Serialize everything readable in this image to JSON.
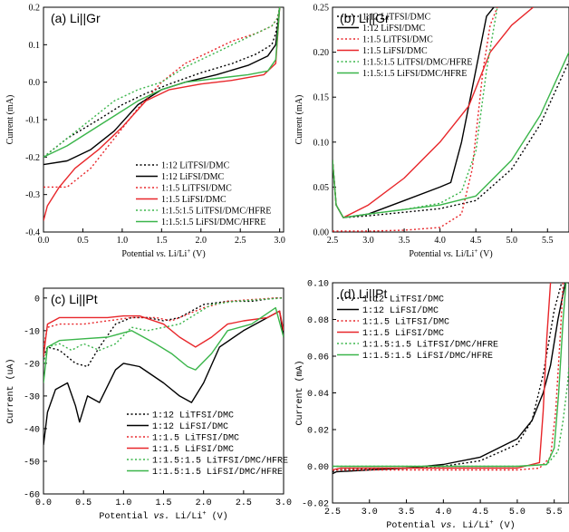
{
  "colors": {
    "black": "#000000",
    "red": "#e8262a",
    "green": "#3ab54a"
  },
  "legend_labels": [
    "1:12 LiTFSI/DMC",
    "1:12 LiFSI/DMC",
    "1:1.5 LiTFSI/DMC",
    "1:1.5 LiFSI/DMC",
    "1:1.5:1.5 LiTFSI/DMC/HFRE",
    "1:1.5:1.5 LiFSI/DMC/HFRE"
  ],
  "series_styles": [
    {
      "color": "black",
      "dash": true
    },
    {
      "color": "black",
      "dash": false
    },
    {
      "color": "red",
      "dash": true
    },
    {
      "color": "red",
      "dash": false
    },
    {
      "color": "green",
      "dash": true
    },
    {
      "color": "green",
      "dash": false
    }
  ],
  "chart_data": [
    {
      "id": "a",
      "type": "line",
      "panel_label": "(a) Li||Gr",
      "xlabel": "Potential vs. Li/Li+ (V)",
      "xlabel_parts": {
        "pre": "Potential ",
        "italic": "vs.",
        "mid": " Li/Li",
        "sup": "+",
        "post": " (V)"
      },
      "ylabel": "Current (mA)",
      "xlim": [
        0.0,
        3.05
      ],
      "ylim": [
        -0.4,
        0.2
      ],
      "xticks": [
        "0.0",
        "0.5",
        "1.0",
        "1.5",
        "2.0",
        "2.5",
        "3.0"
      ],
      "yticks": [
        "-0.4",
        "-0.3",
        "-0.2",
        "-0.1",
        "0.0",
        "0.1",
        "0.2"
      ],
      "legend_position": "bottom-right",
      "series": [
        {
          "name": "1:12 LiTFSI/DMC",
          "x": [
            0,
            0.3,
            0.7,
            1.0,
            1.3,
            1.6,
            2.0,
            2.4,
            2.7,
            2.9,
            2.95,
            3.0
          ],
          "y": [
            -0.2,
            -0.15,
            -0.1,
            -0.06,
            -0.03,
            -0.005,
            0.025,
            0.05,
            0.075,
            0.1,
            0.13,
            0.2
          ]
        },
        {
          "name": "1:12 LiFSI/DMC",
          "x": [
            0,
            0.3,
            0.6,
            0.9,
            1.2,
            1.5,
            1.8,
            2.2,
            2.6,
            2.85,
            2.95,
            3.0
          ],
          "y": [
            -0.22,
            -0.21,
            -0.18,
            -0.13,
            -0.06,
            -0.02,
            0.0,
            0.02,
            0.045,
            0.07,
            0.1,
            0.2
          ]
        },
        {
          "name": "1:1.5 LiTFSI/DMC",
          "x": [
            0,
            0.3,
            0.6,
            0.9,
            1.2,
            1.5,
            1.8,
            2.1,
            2.4,
            2.7,
            2.9,
            2.97,
            3.0
          ],
          "y": [
            -0.28,
            -0.28,
            -0.23,
            -0.15,
            -0.07,
            0.0,
            0.05,
            0.08,
            0.11,
            0.13,
            0.15,
            0.17,
            0.2
          ]
        },
        {
          "name": "1:1.5 LiFSI/DMC",
          "x": [
            0,
            0.05,
            0.2,
            0.4,
            0.7,
            1.0,
            1.3,
            1.6,
            2.0,
            2.4,
            2.8,
            2.95,
            3.0
          ],
          "y": [
            -0.37,
            -0.33,
            -0.28,
            -0.23,
            -0.18,
            -0.12,
            -0.05,
            -0.02,
            -0.005,
            0.005,
            0.02,
            0.05,
            0.2
          ]
        },
        {
          "name": "1:1.5:1.5 LiTFSI/DMC/HFRE",
          "x": [
            0,
            0.3,
            0.6,
            0.9,
            1.2,
            1.5,
            1.8,
            2.1,
            2.4,
            2.7,
            2.9,
            2.97,
            3.0
          ],
          "y": [
            -0.2,
            -0.15,
            -0.1,
            -0.05,
            -0.02,
            0.0,
            0.04,
            0.07,
            0.1,
            0.13,
            0.15,
            0.17,
            0.2
          ]
        },
        {
          "name": "1:1.5:1.5 LiFSI/DMC/HFRE",
          "x": [
            0,
            0.3,
            0.6,
            0.9,
            1.2,
            1.5,
            1.8,
            2.2,
            2.6,
            2.85,
            2.95,
            3.0
          ],
          "y": [
            -0.2,
            -0.17,
            -0.13,
            -0.09,
            -0.05,
            -0.02,
            0.0,
            0.01,
            0.02,
            0.03,
            0.06,
            0.2
          ]
        }
      ]
    },
    {
      "id": "b",
      "type": "line",
      "panel_label": "(b) Li||Gr",
      "xlabel": "Potential vs. Li/Li+ (V)",
      "xlabel_parts": {
        "pre": "Potential ",
        "italic": "vs.",
        "mid": " Li/Li",
        "sup": "+",
        "post": " (V)"
      },
      "ylabel": "Current (mA)",
      "xlim": [
        2.5,
        5.8
      ],
      "ylim": [
        0.0,
        0.25
      ],
      "xticks": [
        "2.5",
        "3.0",
        "3.5",
        "4.0",
        "4.5",
        "5.0",
        "5.5"
      ],
      "yticks": [
        "0.00",
        "0.05",
        "0.10",
        "0.15",
        "0.20",
        "0.25"
      ],
      "legend_position": "top-left",
      "series": [
        {
          "name": "1:12 LiTFSI/DMC",
          "x": [
            2.5,
            2.55,
            2.65,
            3.0,
            3.5,
            4.0,
            4.5,
            5.0,
            5.4,
            5.8
          ],
          "y": [
            0.08,
            0.03,
            0.016,
            0.018,
            0.022,
            0.026,
            0.035,
            0.07,
            0.12,
            0.19
          ]
        },
        {
          "name": "1:12 LiFSI/DMC",
          "x": [
            2.5,
            2.55,
            2.65,
            3.0,
            3.5,
            4.0,
            4.15,
            4.3,
            4.5,
            4.65,
            4.75
          ],
          "y": [
            0.08,
            0.03,
            0.016,
            0.02,
            0.035,
            0.05,
            0.055,
            0.1,
            0.18,
            0.24,
            0.25
          ]
        },
        {
          "name": "1:1.5 LiTFSI/DMC",
          "x": [
            2.5,
            2.6,
            3.0,
            3.5,
            4.0,
            4.3,
            4.45,
            4.6,
            4.7,
            4.8
          ],
          "y": [
            0.001,
            0.001,
            0.001,
            0.002,
            0.005,
            0.02,
            0.07,
            0.18,
            0.23,
            0.25
          ]
        },
        {
          "name": "1:1.5 LiFSI/DMC",
          "x": [
            2.5,
            2.55,
            2.65,
            3.0,
            3.5,
            4.0,
            4.4,
            4.7,
            5.0,
            5.3
          ],
          "y": [
            0.08,
            0.03,
            0.016,
            0.03,
            0.06,
            0.1,
            0.14,
            0.2,
            0.23,
            0.25
          ]
        },
        {
          "name": "1:1.5:1.5 LiTFSI/DMC/HFRE",
          "x": [
            2.5,
            2.55,
            2.65,
            3.0,
            3.5,
            4.0,
            4.3,
            4.5,
            4.65,
            4.8
          ],
          "y": [
            0.08,
            0.03,
            0.016,
            0.02,
            0.025,
            0.032,
            0.045,
            0.09,
            0.18,
            0.25
          ]
        },
        {
          "name": "1:1.5:1.5 LiFSI/DMC/HFRE",
          "x": [
            2.5,
            2.55,
            2.65,
            3.0,
            3.5,
            4.0,
            4.5,
            5.0,
            5.4,
            5.8
          ],
          "y": [
            0.08,
            0.03,
            0.016,
            0.02,
            0.025,
            0.03,
            0.04,
            0.08,
            0.13,
            0.2
          ]
        }
      ]
    },
    {
      "id": "c",
      "type": "line",
      "panel_label": "(c) Li||Pt",
      "xlabel": "Potential vs. Li/Li+ (V)",
      "xlabel_parts": {
        "pre": "Potential ",
        "italic": "vs.",
        "mid": " Li/Li",
        "sup": "+",
        "post": " (V)"
      },
      "ylabel": "Current (uA)",
      "xlim": [
        0.0,
        3.0
      ],
      "ylim": [
        -60,
        3
      ],
      "xticks": [
        "0.0",
        "0.5",
        "1.0",
        "1.5",
        "2.0",
        "2.5",
        "3.0"
      ],
      "yticks": [
        "-60",
        "-50",
        "-40",
        "-30",
        "-20",
        "-10",
        "0"
      ],
      "legend_position": "bottom-right",
      "series": [
        {
          "name": "1:12 LiTFSI/DMC",
          "x": [
            0.0,
            0.05,
            0.2,
            0.4,
            0.55,
            0.7,
            0.9,
            1.1,
            1.3,
            1.5,
            1.7,
            2.0,
            2.3,
            2.6,
            2.9,
            3.0
          ],
          "y": [
            -18,
            -15,
            -16,
            -20,
            -21,
            -15,
            -8,
            -6,
            -6,
            -7,
            -6,
            -2,
            -1,
            -1,
            0,
            0
          ]
        },
        {
          "name": "1:12 LiFSI/DMC",
          "x": [
            0.0,
            0.05,
            0.15,
            0.3,
            0.4,
            0.45,
            0.55,
            0.7,
            0.9,
            1.0,
            1.2,
            1.5,
            1.7,
            1.85,
            2.0,
            2.2,
            2.5,
            2.8,
            2.95,
            3.0
          ],
          "y": [
            -45,
            -35,
            -28,
            -26,
            -33,
            -38,
            -30,
            -32,
            -22,
            -20,
            -21,
            -26,
            -30,
            -32,
            -26,
            -15,
            -10,
            -6,
            -4,
            -12
          ]
        },
        {
          "name": "1:1.5 LiTFSI/DMC",
          "x": [
            0.0,
            0.05,
            0.2,
            0.5,
            0.8,
            1.1,
            1.4,
            1.6,
            1.8,
            2.0,
            2.3,
            2.6,
            2.9,
            3.0
          ],
          "y": [
            -15,
            -9,
            -8,
            -8,
            -7,
            -6,
            -6,
            -7,
            -5,
            -3,
            -1,
            -0.5,
            0,
            0
          ]
        },
        {
          "name": "1:1.5 LiFSI/DMC",
          "x": [
            0.0,
            0.05,
            0.2,
            0.5,
            0.8,
            1.0,
            1.2,
            1.5,
            1.7,
            1.9,
            2.1,
            2.3,
            2.5,
            2.8,
            2.95,
            3.0
          ],
          "y": [
            -18,
            -8,
            -6,
            -6,
            -6,
            -5.5,
            -5.5,
            -8,
            -12,
            -15,
            -12,
            -8,
            -7,
            -6,
            -4,
            -10
          ]
        },
        {
          "name": "1:1.5:1.5 LiTFSI/DMC/HFRE",
          "x": [
            0.0,
            0.05,
            0.2,
            0.35,
            0.5,
            0.7,
            0.9,
            1.1,
            1.3,
            1.5,
            1.7,
            1.9,
            2.1,
            2.4,
            2.7,
            3.0
          ],
          "y": [
            -20,
            -15,
            -14,
            -16,
            -14,
            -16,
            -14,
            -9,
            -10,
            -9,
            -8,
            -5,
            -2,
            -1,
            -0.5,
            0
          ]
        },
        {
          "name": "1:1.5:1.5 LiFSI/DMC/HFRE",
          "x": [
            0.0,
            0.05,
            0.2,
            0.5,
            0.8,
            1.1,
            1.4,
            1.6,
            1.8,
            1.9,
            2.1,
            2.3,
            2.6,
            2.9,
            3.0
          ],
          "y": [
            -26,
            -15,
            -13,
            -12.5,
            -12,
            -10,
            -14,
            -17,
            -21,
            -22,
            -17,
            -10,
            -8,
            -3,
            -12
          ]
        }
      ]
    },
    {
      "id": "d",
      "type": "line",
      "panel_label": "(d) Li||Pt",
      "xlabel": "Potential vs. Li/Li+ (V)",
      "xlabel_parts": {
        "pre": "Potential ",
        "italic": "vs.",
        "mid": " Li/Li",
        "sup": "+",
        "post": " (V)"
      },
      "ylabel": "Current (mA)",
      "xlim": [
        2.5,
        5.7
      ],
      "ylim": [
        -0.02,
        0.1
      ],
      "xticks": [
        "2.5",
        "3.0",
        "3.5",
        "4.0",
        "4.5",
        "5.0",
        "5.5"
      ],
      "yticks": [
        "-0.02",
        "0.00",
        "0.02",
        "0.04",
        "0.06",
        "0.08",
        "0.10"
      ],
      "legend_position": "top-left",
      "series": [
        {
          "name": "1:12 LiTFSI/DMC",
          "x": [
            2.5,
            2.55,
            3.0,
            3.5,
            4.0,
            4.5,
            5.0,
            5.2,
            5.35,
            5.5,
            5.6
          ],
          "y": [
            -0.003,
            -0.002,
            -0.0015,
            -0.001,
            0.0,
            0.003,
            0.012,
            0.025,
            0.05,
            0.085,
            0.1
          ]
        },
        {
          "name": "1:12 LiFSI/DMC",
          "x": [
            2.5,
            2.55,
            3.0,
            3.5,
            4.0,
            4.5,
            5.0,
            5.2,
            5.35,
            5.45,
            5.55,
            5.65
          ],
          "y": [
            -0.004,
            -0.003,
            -0.002,
            -0.001,
            0.001,
            0.005,
            0.015,
            0.025,
            0.04,
            0.055,
            0.08,
            0.1
          ]
        },
        {
          "name": "1:1.5 LiTFSI/DMC",
          "x": [
            2.5,
            3.0,
            3.5,
            4.0,
            4.5,
            5.0,
            5.3,
            5.45,
            5.52,
            5.58,
            5.62
          ],
          "y": [
            -0.002,
            -0.002,
            -0.002,
            -0.002,
            -0.002,
            -0.002,
            -0.001,
            0.005,
            0.03,
            0.07,
            0.1
          ]
        },
        {
          "name": "1:1.5 LiFSI/DMC",
          "x": [
            2.5,
            2.6,
            3.0,
            3.5,
            4.0,
            4.5,
            5.0,
            5.3,
            5.35,
            5.4,
            5.45
          ],
          "y": [
            -0.002,
            -0.001,
            -0.001,
            -0.001,
            -0.001,
            -0.001,
            -0.001,
            0.002,
            0.03,
            0.07,
            0.1
          ]
        },
        {
          "name": "1:1.5:1.5 LiTFSI/DMC/HFRE",
          "x": [
            2.5,
            3.0,
            3.5,
            4.0,
            4.5,
            5.0,
            5.4,
            5.55,
            5.62,
            5.68,
            5.7
          ],
          "y": [
            0.0,
            0.0,
            0.0,
            0.0,
            0.0,
            0.0,
            0.001,
            0.008,
            0.025,
            0.045,
            0.055
          ]
        },
        {
          "name": "1:1.5:1.5 LiFSI/DMC/HFRE",
          "x": [
            2.5,
            3.0,
            3.5,
            4.0,
            4.5,
            5.0,
            5.4,
            5.5,
            5.56,
            5.62,
            5.66
          ],
          "y": [
            0.0,
            0.0,
            0.0,
            0.0,
            0.0,
            0.0,
            0.001,
            0.01,
            0.04,
            0.08,
            0.1
          ]
        }
      ]
    }
  ]
}
